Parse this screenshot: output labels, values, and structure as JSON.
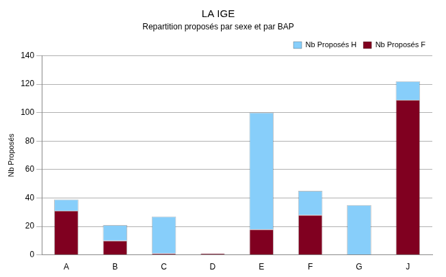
{
  "chart_data": {
    "type": "bar",
    "title": "LA IGE",
    "subtitle": "Repartition proposés par sexe et par BAP",
    "y_label": "Nb Proposés",
    "categories": [
      "A",
      "B",
      "C",
      "D",
      "E",
      "F",
      "G",
      "J"
    ],
    "series": [
      {
        "name": "Nb Proposés F",
        "color": "#800020",
        "values": [
          31,
          10,
          1,
          1,
          18,
          28,
          0,
          109
        ]
      },
      {
        "name": "Nb Proposés H",
        "color": "#87cefa",
        "values": [
          8,
          11,
          26,
          0,
          82,
          17,
          35,
          13
        ]
      }
    ],
    "stacked": true,
    "ylim": [
      0,
      140
    ],
    "yticks": [
      0,
      20,
      40,
      60,
      80,
      100,
      120,
      140
    ],
    "grid": true,
    "legend": "top-right"
  }
}
